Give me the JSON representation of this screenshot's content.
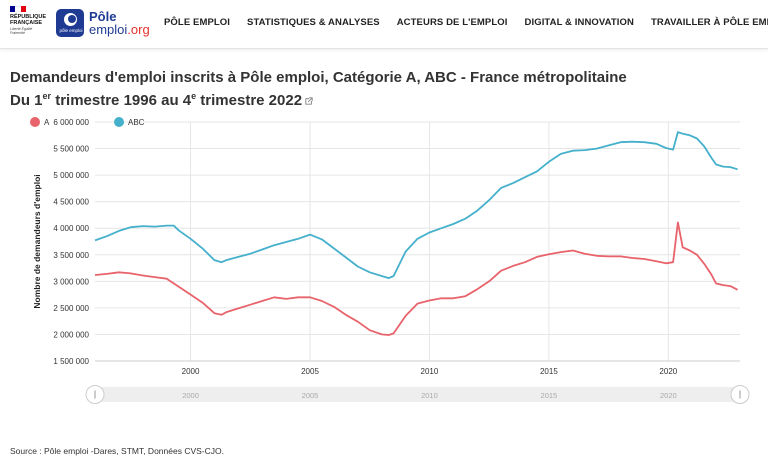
{
  "header": {
    "rf_name_line1": "RÉPUBLIQUE",
    "rf_name_line2": "FRANÇAISE",
    "rf_motto": "Liberté Égalité Fraternité",
    "logo_badge": "pôle emploi",
    "logo_line1": "Pôle",
    "logo_line2a": "emploi",
    "logo_line2b": ".org",
    "nav": [
      "PÔLE EMPLOI",
      "STATISTIQUES & ANALYSES",
      "ACTEURS DE L'EMPLOI",
      "DIGITAL & INNOVATION",
      "TRAVAILLER À PÔLE EMPLOI"
    ]
  },
  "title": {
    "line1": "Demandeurs d'emploi inscrits à Pôle emploi, Catégorie A, ABC - France métropolitaine",
    "line2_pre": "Du 1",
    "line2_sup1": "er",
    "line2_mid": " trimestre 1996 au 4",
    "line2_sup2": "e",
    "line2_post": " trimestre 2022"
  },
  "source": "Source : Pôle emploi -Dares, STMT, Données CVS-CJO.",
  "colors": {
    "A": "#e8636b",
    "ABC": "#45b0cc",
    "grid": "#e6e6e6",
    "navigator": "#eeeeee"
  },
  "chart_data": {
    "type": "line",
    "ylabel": "Nombre de demandeurs d'emploi",
    "ylim": [
      1500000,
      6000000
    ],
    "yticks": [
      "1 500 000",
      "2 000 000",
      "2 500 000",
      "3 000 000",
      "3 500 000",
      "4 000 000",
      "4 500 000",
      "5 000 000",
      "5 500 000",
      "6 000 000"
    ],
    "xlim": [
      1996.0,
      2023.0
    ],
    "xticks": [
      "2000",
      "2005",
      "2010",
      "2015",
      "2020"
    ],
    "legend_position": "top-left",
    "series": [
      {
        "name": "A",
        "x": [
          1996.0,
          1996.5,
          1997.0,
          1997.5,
          1998.0,
          1998.5,
          1999.0,
          1999.5,
          2000.0,
          2000.5,
          2001.0,
          2001.3,
          2001.5,
          2002.0,
          2002.5,
          2003.0,
          2003.5,
          2004.0,
          2004.5,
          2005.0,
          2005.5,
          2006.0,
          2006.5,
          2007.0,
          2007.5,
          2008.0,
          2008.3,
          2008.5,
          2009.0,
          2009.5,
          2010.0,
          2010.5,
          2011.0,
          2011.5,
          2012.0,
          2012.5,
          2013.0,
          2013.5,
          2014.0,
          2014.5,
          2015.0,
          2015.5,
          2016.0,
          2016.5,
          2017.0,
          2017.5,
          2018.0,
          2018.5,
          2019.0,
          2019.5,
          2019.9,
          2020.2,
          2020.4,
          2020.6,
          2020.9,
          2021.2,
          2021.5,
          2021.8,
          2022.0,
          2022.3,
          2022.6,
          2022.9
        ],
        "values": [
          3120000,
          3140000,
          3170000,
          3150000,
          3110000,
          3080000,
          3050000,
          2900000,
          2750000,
          2600000,
          2400000,
          2370000,
          2420000,
          2490000,
          2560000,
          2630000,
          2700000,
          2670000,
          2700000,
          2700000,
          2630000,
          2520000,
          2370000,
          2240000,
          2080000,
          2000000,
          1990000,
          2020000,
          2350000,
          2580000,
          2640000,
          2680000,
          2680000,
          2720000,
          2850000,
          3000000,
          3200000,
          3290000,
          3360000,
          3460000,
          3510000,
          3550000,
          3580000,
          3520000,
          3480000,
          3470000,
          3470000,
          3440000,
          3420000,
          3380000,
          3340000,
          3360000,
          4110000,
          3640000,
          3580000,
          3500000,
          3330000,
          3130000,
          2960000,
          2930000,
          2910000,
          2840000
        ]
      },
      {
        "name": "ABC",
        "x": [
          1996.0,
          1996.5,
          1997.0,
          1997.5,
          1998.0,
          1998.5,
          1999.0,
          1999.3,
          1999.5,
          2000.0,
          2000.5,
          2001.0,
          2001.3,
          2001.5,
          2002.0,
          2002.5,
          2003.0,
          2003.5,
          2004.0,
          2004.5,
          2005.0,
          2005.5,
          2006.0,
          2006.5,
          2007.0,
          2007.5,
          2008.0,
          2008.3,
          2008.5,
          2009.0,
          2009.5,
          2010.0,
          2010.5,
          2011.0,
          2011.5,
          2012.0,
          2012.5,
          2013.0,
          2013.5,
          2014.0,
          2014.5,
          2015.0,
          2015.5,
          2016.0,
          2016.5,
          2017.0,
          2017.5,
          2018.0,
          2018.5,
          2019.0,
          2019.5,
          2019.9,
          2020.2,
          2020.4,
          2020.6,
          2020.9,
          2021.2,
          2021.5,
          2021.8,
          2022.0,
          2022.3,
          2022.6,
          2022.9
        ],
        "values": [
          3770000,
          3850000,
          3950000,
          4020000,
          4040000,
          4030000,
          4050000,
          4050000,
          3960000,
          3800000,
          3620000,
          3400000,
          3360000,
          3400000,
          3460000,
          3520000,
          3600000,
          3680000,
          3740000,
          3800000,
          3880000,
          3790000,
          3620000,
          3450000,
          3280000,
          3170000,
          3100000,
          3060000,
          3100000,
          3560000,
          3800000,
          3920000,
          4000000,
          4080000,
          4180000,
          4330000,
          4530000,
          4760000,
          4850000,
          4960000,
          5070000,
          5250000,
          5400000,
          5460000,
          5470000,
          5500000,
          5560000,
          5620000,
          5630000,
          5620000,
          5590000,
          5510000,
          5480000,
          5810000,
          5780000,
          5750000,
          5690000,
          5540000,
          5330000,
          5200000,
          5160000,
          5150000,
          5110000
        ]
      }
    ],
    "navigator_labels": [
      "2000",
      "2005",
      "2010",
      "2015",
      "2020"
    ]
  }
}
